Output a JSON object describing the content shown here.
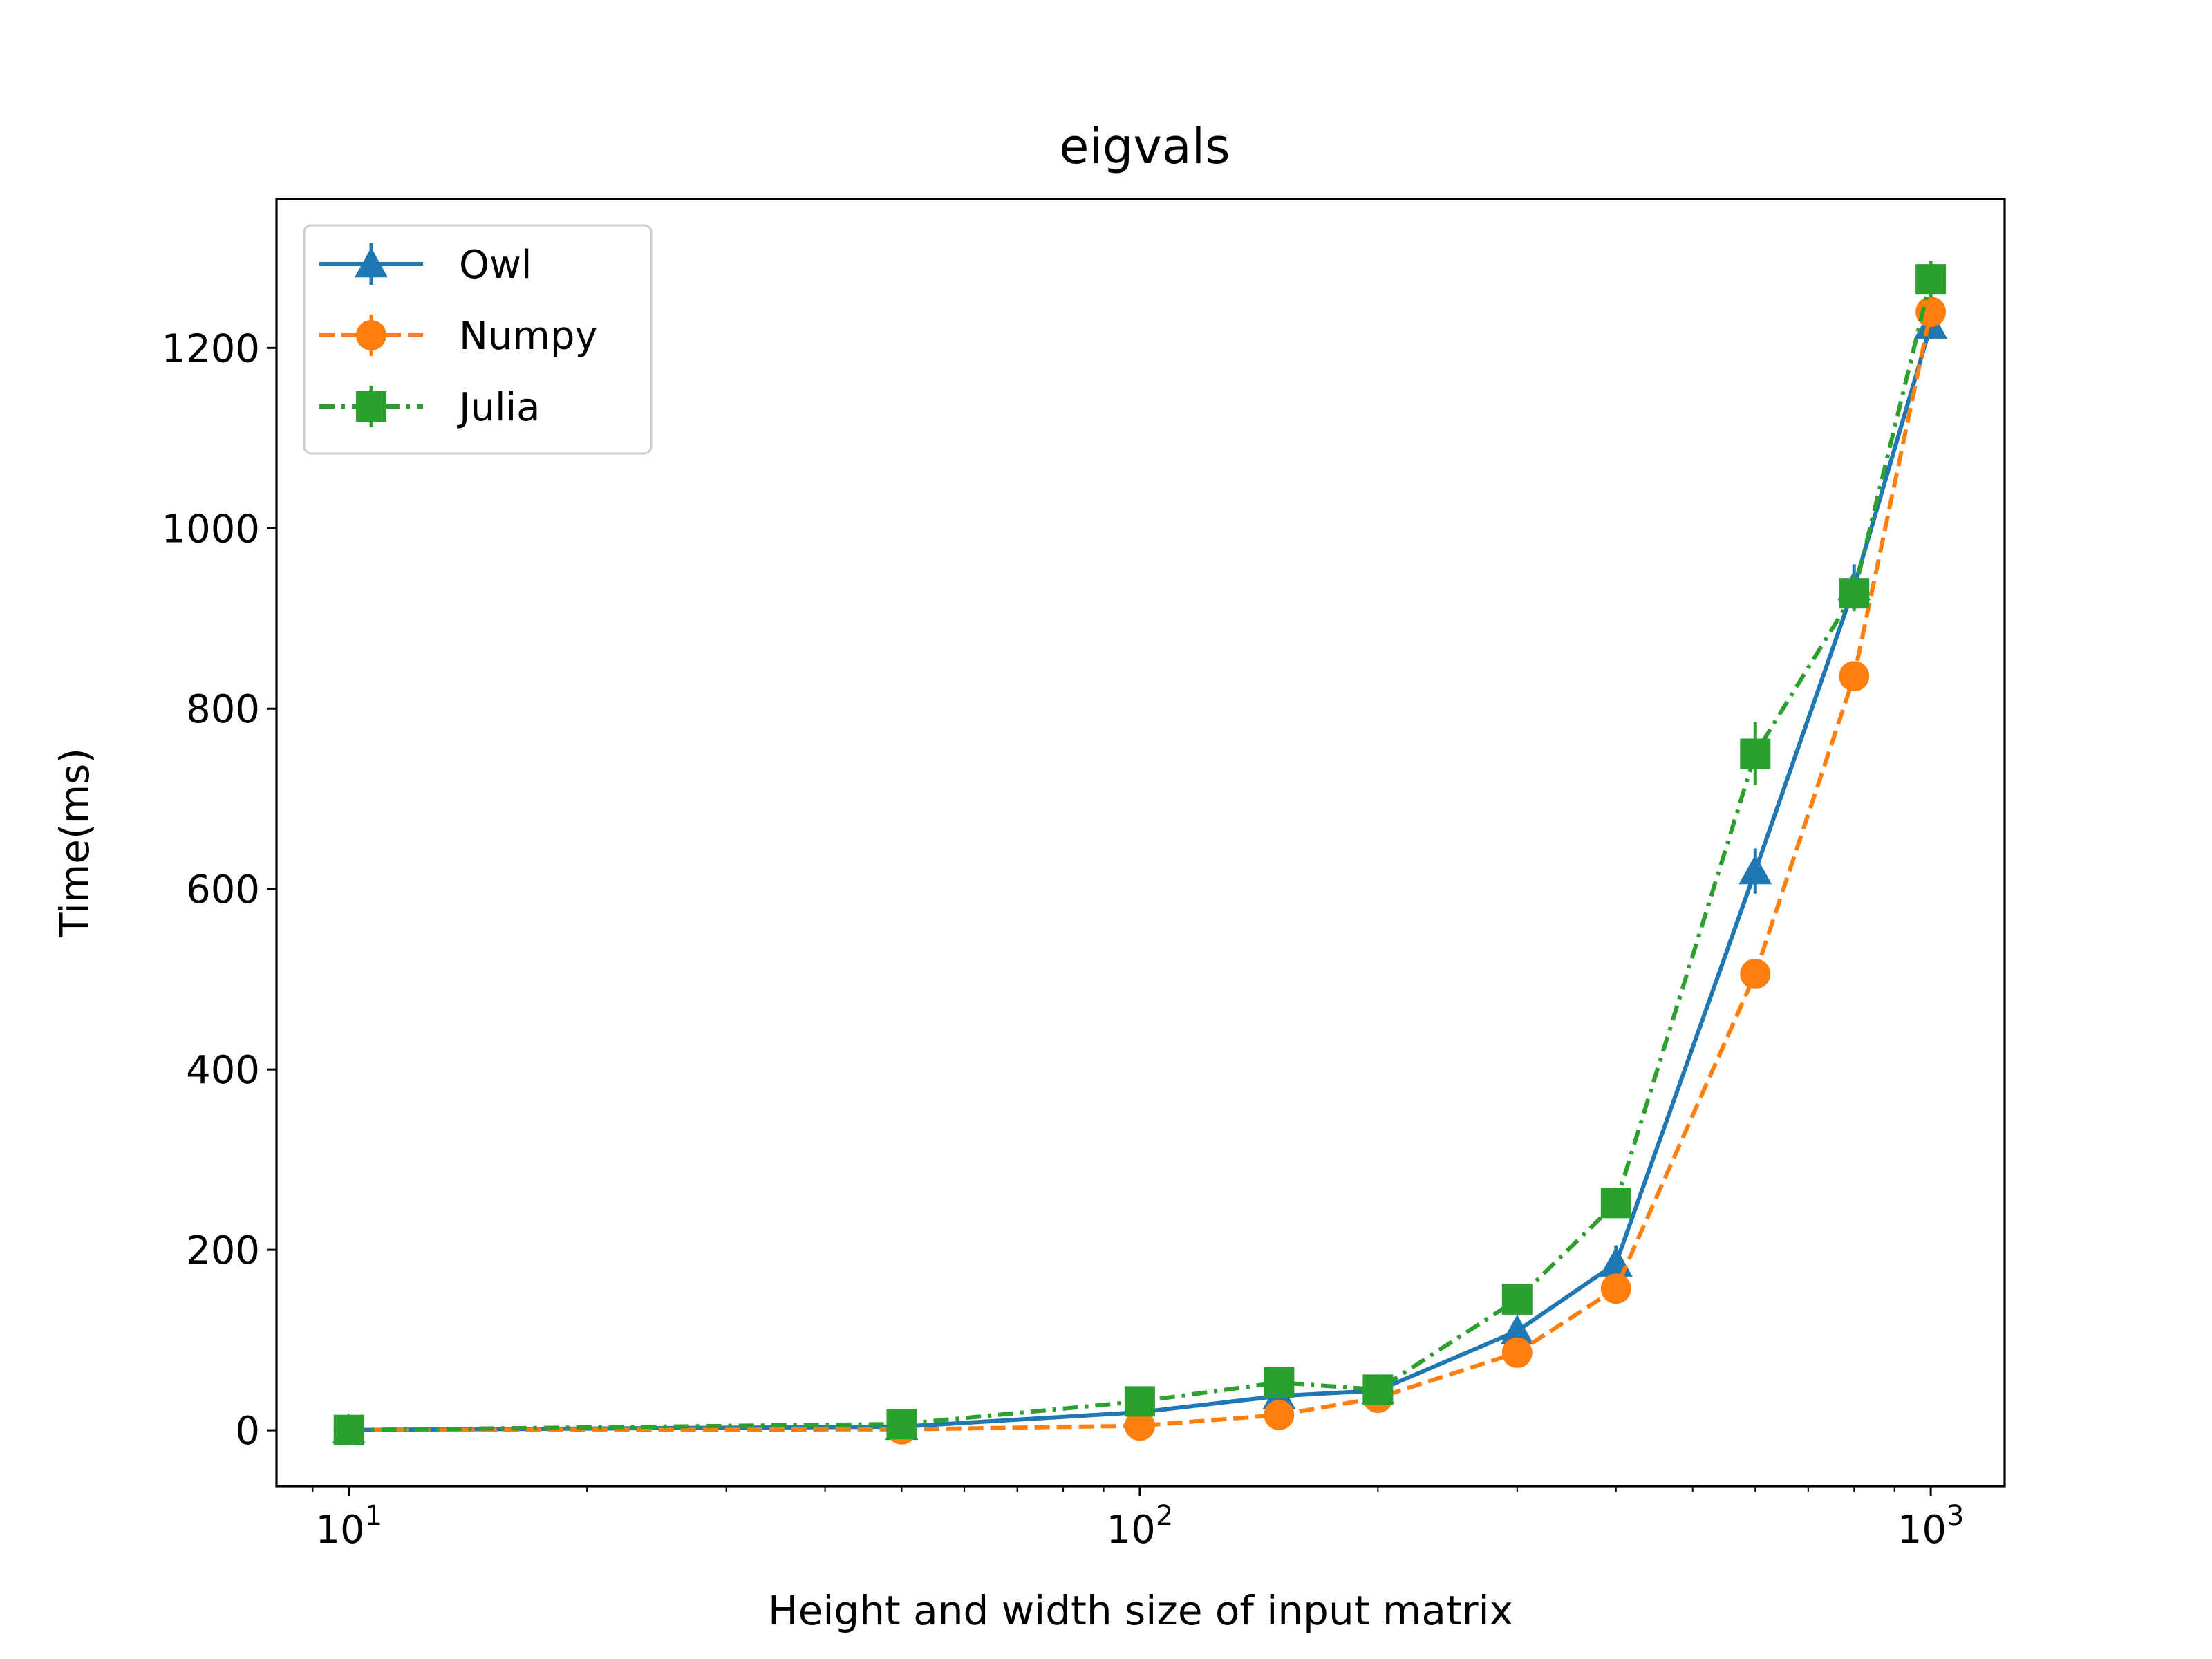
{
  "chart_data": {
    "type": "line",
    "title": "eigvals",
    "xlabel": "Height and width size of input matrix",
    "ylabel": "Time(ms)",
    "xscale": "log",
    "xlim": [
      8.1,
      1240
    ],
    "ylim": [
      -62,
      1365
    ],
    "xticks": [
      {
        "value": 10,
        "base": "10",
        "exp": "1"
      },
      {
        "value": 100,
        "base": "10",
        "exp": "2"
      },
      {
        "value": 1000,
        "base": "10",
        "exp": "3"
      }
    ],
    "yticks": [
      {
        "value": 0,
        "label": "0"
      },
      {
        "value": 200,
        "label": "200"
      },
      {
        "value": 400,
        "label": "400"
      },
      {
        "value": 600,
        "label": "600"
      },
      {
        "value": 800,
        "label": "800"
      },
      {
        "value": 1000,
        "label": "1000"
      },
      {
        "value": 1200,
        "label": "1200"
      }
    ],
    "grid": false,
    "legend": "top-left",
    "x": [
      10,
      50,
      100,
      150,
      200,
      300,
      400,
      600,
      800,
      1000
    ],
    "series": [
      {
        "name": "Owl",
        "color": "#1f77b4",
        "marker": "triangle",
        "dash": "solid",
        "values": [
          0.3,
          4,
          20,
          38,
          44,
          110,
          185,
          620,
          935,
          1225
        ],
        "errors": [
          1,
          2,
          4,
          5,
          6,
          15,
          20,
          25,
          25,
          15
        ]
      },
      {
        "name": "Numpy",
        "color": "#ff7f0e",
        "marker": "circle",
        "dash": "dashed",
        "values": [
          0.2,
          1,
          5,
          17,
          36,
          86,
          157,
          506,
          836,
          1240
        ],
        "errors": [
          1,
          1,
          2,
          3,
          4,
          5,
          6,
          8,
          8,
          10
        ]
      },
      {
        "name": "Julia",
        "color": "#2ca02c",
        "marker": "square",
        "dash": "dashdot",
        "values": [
          0.3,
          7,
          32,
          53,
          45,
          145,
          252,
          750,
          928,
          1276
        ],
        "errors": [
          1,
          2,
          4,
          6,
          6,
          12,
          15,
          35,
          20,
          20
        ]
      }
    ]
  }
}
